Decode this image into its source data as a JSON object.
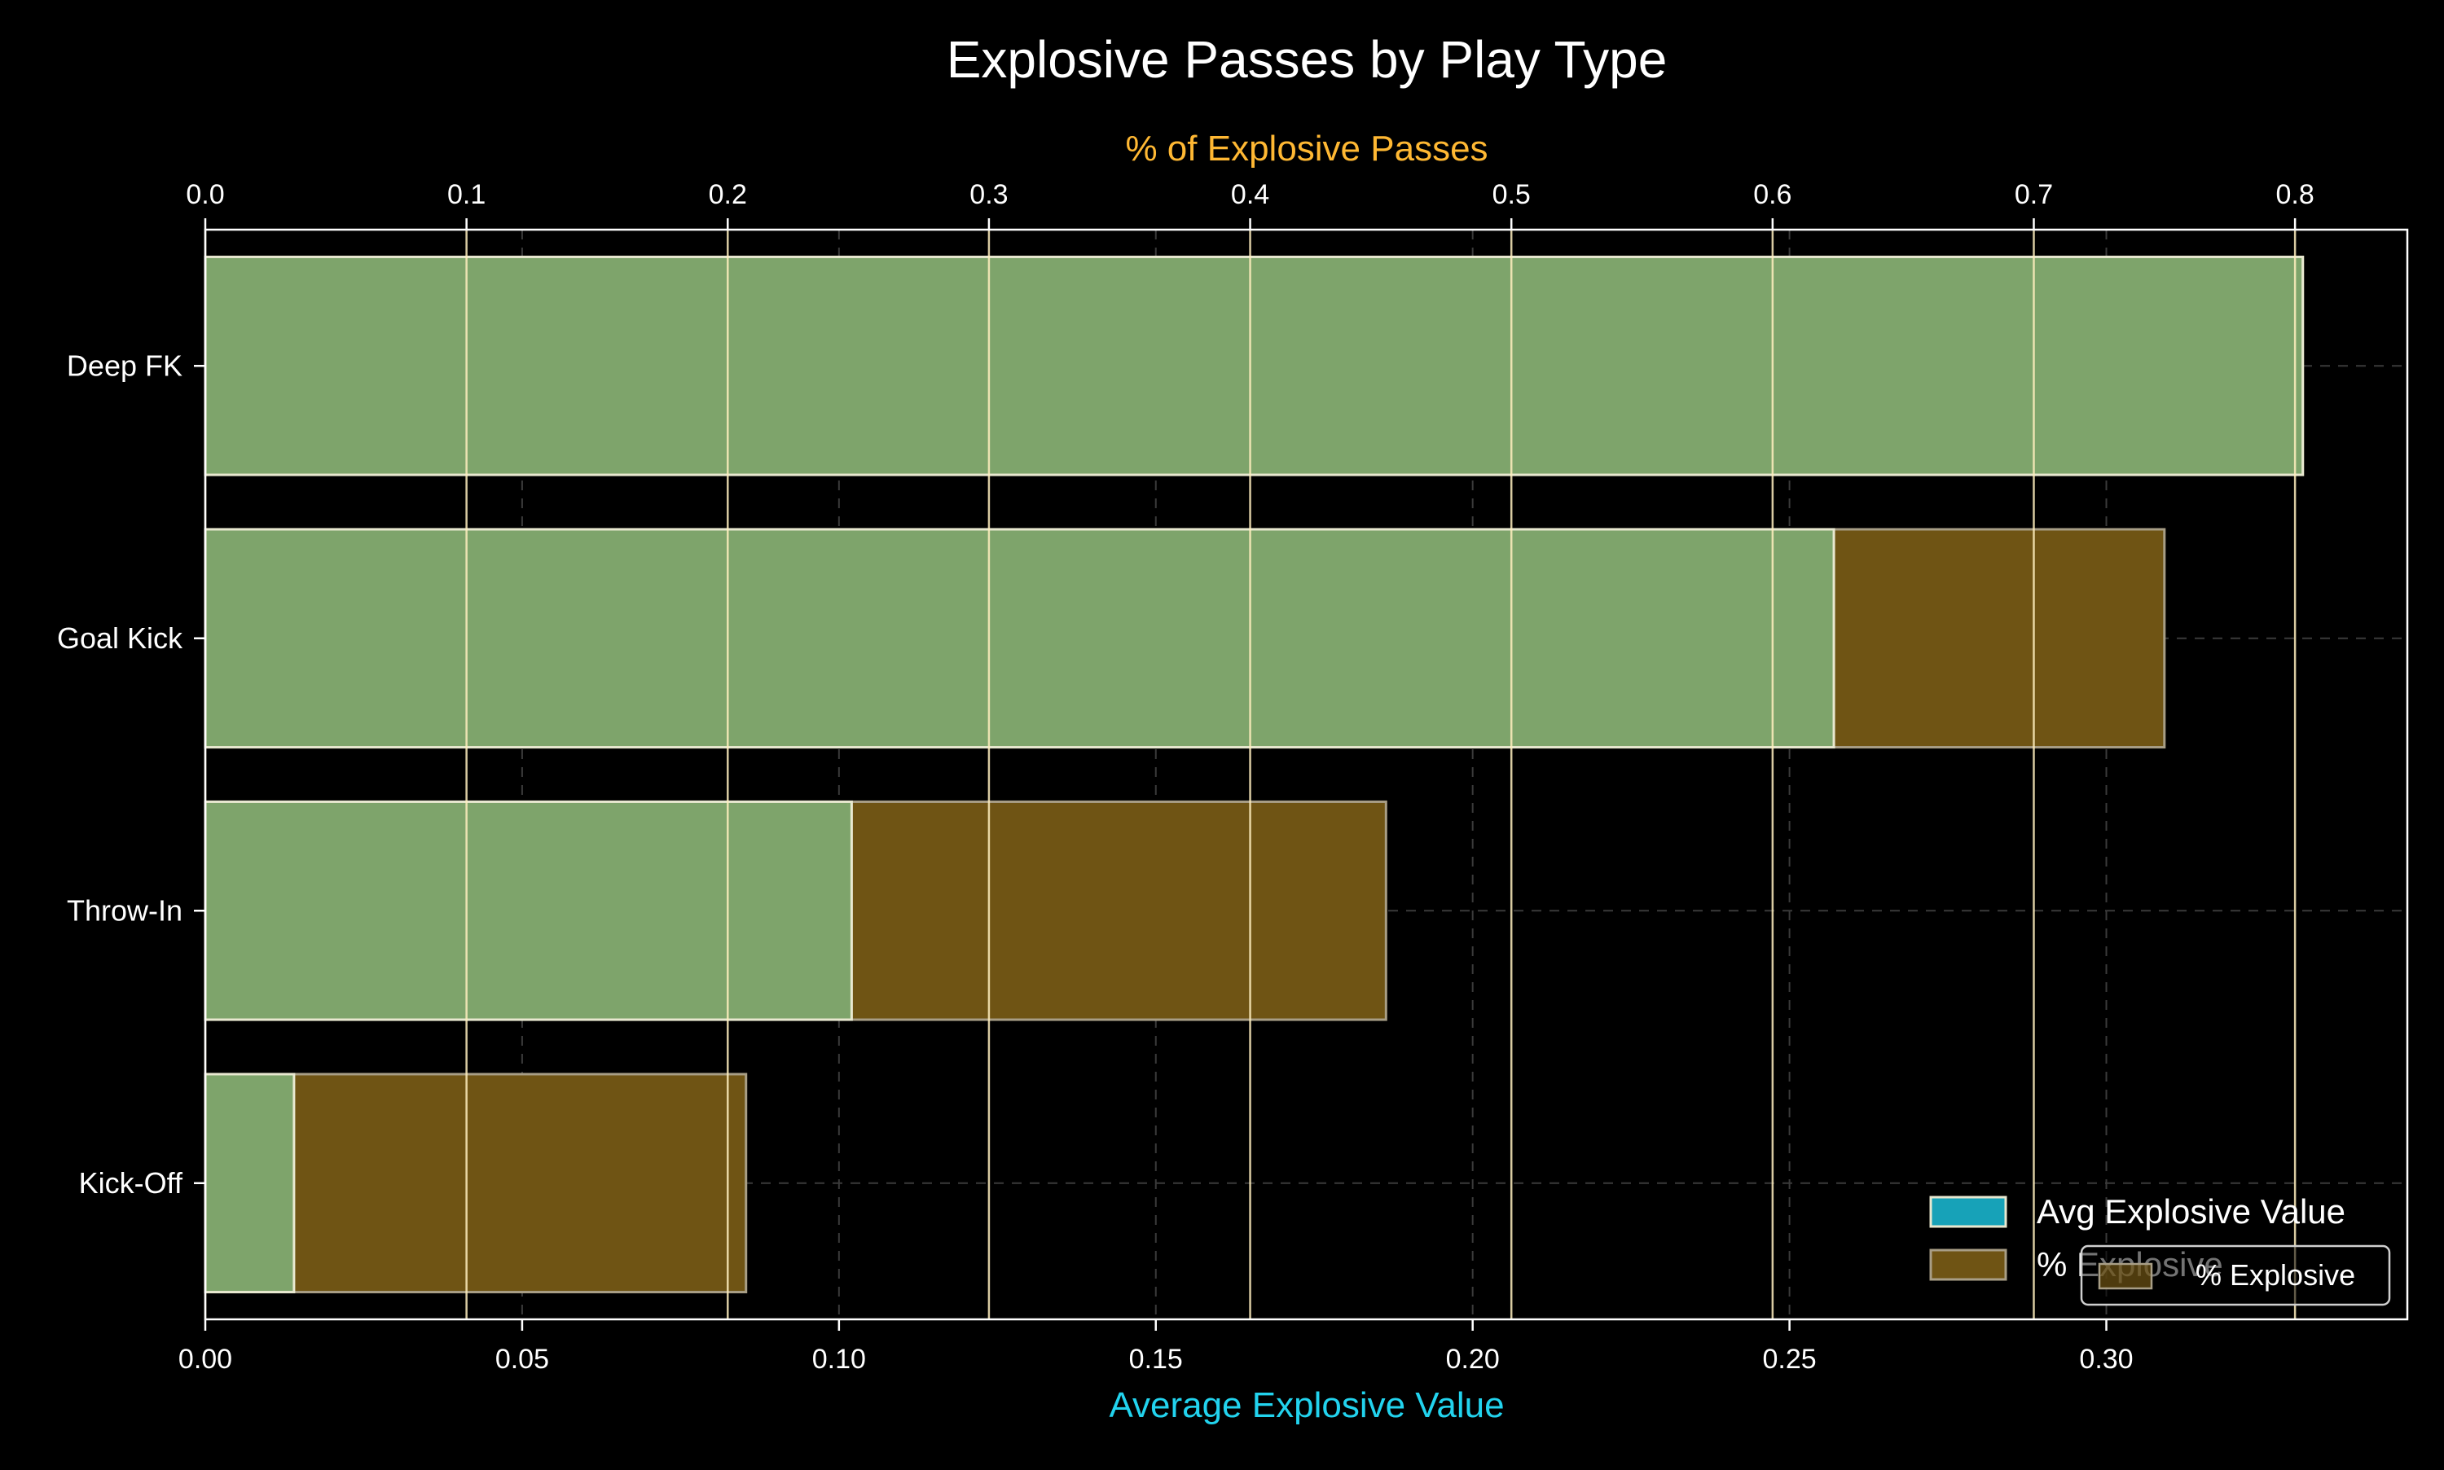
{
  "chart_data": {
    "type": "bar",
    "orientation": "horizontal",
    "title": "Explosive Passes by Play Type",
    "categories": [
      "Deep FK",
      "Goal Kick",
      "Throw-In",
      "Kick-Off"
    ],
    "series": [
      {
        "name": "Avg Explosive Value",
        "axis": "bottom",
        "values": [
          0.331,
          0.257,
          0.102,
          0.014
        ],
        "color": "#17becf"
      },
      {
        "name": "% Explosive",
        "axis": "top",
        "values": [
          0.803,
          0.75,
          0.452,
          0.207
        ],
        "color": "#b8860b"
      }
    ],
    "x_bottom": {
      "label": "Average Explosive Value",
      "label_color": "#22d3ee",
      "lim": [
        0,
        0.3475
      ],
      "ticks": [
        0.0,
        0.05,
        0.1,
        0.15,
        0.2,
        0.25,
        0.3
      ],
      "tick_labels": [
        "0.00",
        "0.05",
        "0.10",
        "0.15",
        "0.20",
        "0.25",
        "0.30"
      ],
      "grid": "dashed"
    },
    "x_top": {
      "label": "% of Explosive Passes",
      "label_color": "#ffb833",
      "lim": [
        0,
        0.843
      ],
      "ticks": [
        0.0,
        0.1,
        0.2,
        0.3,
        0.4,
        0.5,
        0.6,
        0.7,
        0.8
      ],
      "tick_labels": [
        "0.0",
        "0.1",
        "0.2",
        "0.3",
        "0.4",
        "0.5",
        "0.6",
        "0.7",
        "0.8"
      ],
      "grid": "solid"
    },
    "legend": {
      "placement": "lower-right",
      "entries": [
        "Avg Explosive Value",
        "% Explosive"
      ],
      "secondary_entries": [
        "% Explosive"
      ]
    },
    "colors": {
      "background": "#000000",
      "text": "#ffffff",
      "overlap": "#7ea46b",
      "pct_fill": "#6f5414",
      "avg_legend_swatch": "#17a2b8",
      "bar_edge": "#e8e8d0"
    }
  }
}
